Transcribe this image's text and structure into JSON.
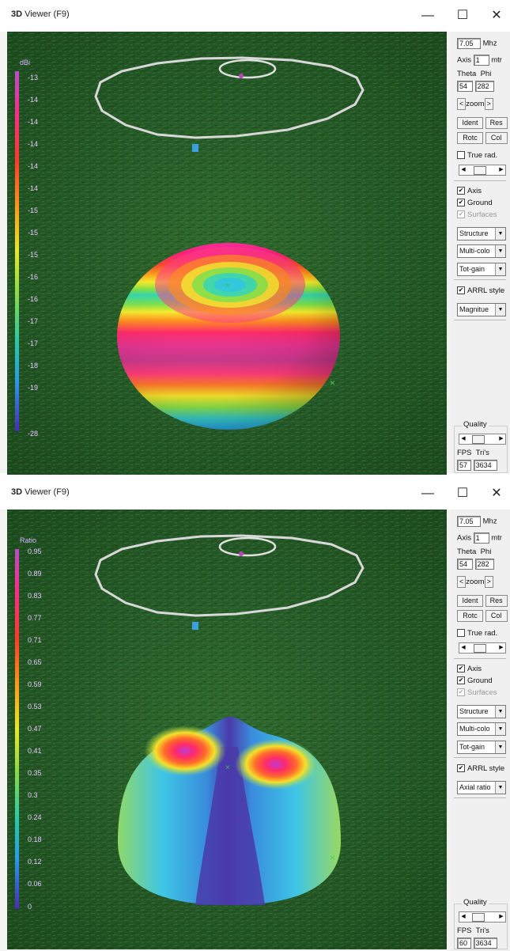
{
  "windows": [
    {
      "title_prefix": "3D",
      "title": "Viewer (F9)",
      "freq": "7.05",
      "freq_unit": "Mhz",
      "axis_label": "Axis",
      "axis_value": "1",
      "axis_unit": "mtr",
      "theta_label": "Theta",
      "phi_label": "Phi",
      "theta": "54",
      "phi": "282",
      "zoom_left": "<",
      "zoom_label": "zoom",
      "zoom_right": ">",
      "ident": "Ident",
      "res": "Res",
      "rotc": "Rotc",
      "col": "Col",
      "true_rad": "True rad.",
      "axis_check": "Axis",
      "ground_check": "Ground",
      "surfaces_check": "Surfaces",
      "combo1": "Structure",
      "combo2": "Multi-colo",
      "combo3": "Tot-gain",
      "arrl": "ARRL style",
      "combo4": "Magnitue",
      "quality": "Quality",
      "fps_label": "FPS",
      "tris_label": "Tri's",
      "fps": "57",
      "tris": "3634",
      "legend_title": "dBi",
      "legend_ticks": [
        "-13",
        "-14",
        "-14",
        "-14",
        "-14",
        "-14",
        "-15",
        "-15",
        "-15",
        "-16",
        "-16",
        "-17",
        "-17",
        "-18",
        "-19",
        "-28"
      ]
    },
    {
      "title_prefix": "3D",
      "title": "Viewer (F9)",
      "freq": "7.05",
      "freq_unit": "Mhz",
      "axis_label": "Axis",
      "axis_value": "1",
      "axis_unit": "mtr",
      "theta_label": "Theta",
      "phi_label": "Phi",
      "theta": "54",
      "phi": "282",
      "zoom_left": "<",
      "zoom_label": "zoom",
      "zoom_right": ">",
      "ident": "Ident",
      "res": "Res",
      "rotc": "Rotc",
      "col": "Col",
      "true_rad": "True rad.",
      "axis_check": "Axis",
      "ground_check": "Ground",
      "surfaces_check": "Surfaces",
      "combo1": "Structure",
      "combo2": "Multi-colo",
      "combo3": "Tot-gain",
      "arrl": "ARRL style",
      "combo4": "Axial ratio",
      "quality": "Quality",
      "fps_label": "FPS",
      "tris_label": "Tri's",
      "fps": "60",
      "tris": "3634",
      "legend_title": "Ratio",
      "legend_ticks": [
        "0.95",
        "0.89",
        "0.83",
        "0.77",
        "0.71",
        "0.65",
        "0.59",
        "0.53",
        "0.47",
        "0.41",
        "0.35",
        "0.3",
        "0.24",
        "0.18",
        "0.12",
        "0.06",
        "0"
      ]
    }
  ],
  "icons": {
    "minimize": "minimize-icon",
    "maximize": "maximize-icon",
    "close": "close-icon"
  },
  "glyphs": {
    "minimize": "—",
    "maximize": "☐",
    "close": "✕",
    "check": "✔",
    "left": "◀",
    "right": "▶",
    "down": "▼"
  }
}
